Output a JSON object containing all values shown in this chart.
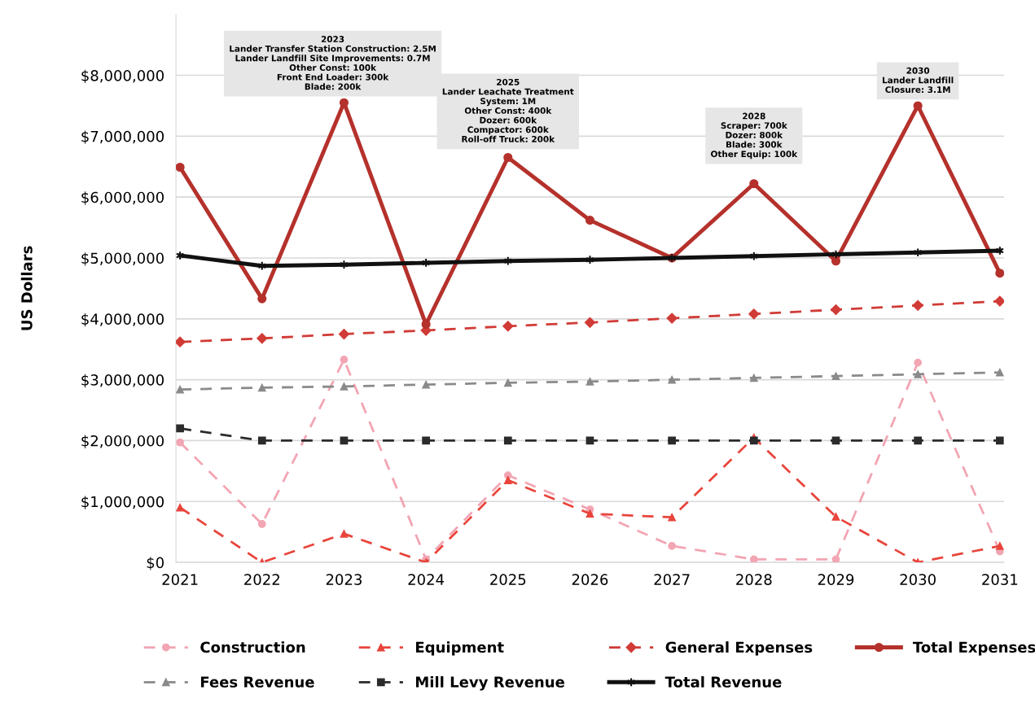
{
  "chart_data": {
    "type": "line",
    "ylabel": "US Dollars",
    "categories": [
      "2021",
      "2022",
      "2023",
      "2024",
      "2025",
      "2026",
      "2027",
      "2028",
      "2029",
      "2030",
      "2031"
    ],
    "ylim": [
      0,
      9000000
    ],
    "yticks": [
      {
        "value": 0,
        "label": "$0"
      },
      {
        "value": 1000000,
        "label": "$1,000,000"
      },
      {
        "value": 2000000,
        "label": "$2,000,000"
      },
      {
        "value": 3000000,
        "label": "$3,000,000"
      },
      {
        "value": 4000000,
        "label": "$4,000,000"
      },
      {
        "value": 5000000,
        "label": "$5,000,000"
      },
      {
        "value": 6000000,
        "label": "$6,000,000"
      },
      {
        "value": 7000000,
        "label": "$7,000,000"
      },
      {
        "value": 8000000,
        "label": "$8,000,000"
      }
    ],
    "grid": "y",
    "legend": "bottom",
    "series": [
      {
        "name": "Construction",
        "color": "#f2a5b3",
        "marker": "circle",
        "line_style": "dashed",
        "values": [
          1970000,
          630000,
          3330000,
          50000,
          1430000,
          870000,
          270000,
          50000,
          50000,
          3280000,
          180000
        ]
      },
      {
        "name": "Equipment",
        "color": "#e8453c",
        "marker": "triangle",
        "line_style": "dashed",
        "values": [
          900000,
          0,
          470000,
          0,
          1350000,
          800000,
          740000,
          2050000,
          750000,
          0,
          270000
        ]
      },
      {
        "name": "General Expenses",
        "color": "#d13b36",
        "marker": "diamond",
        "line_style": "dashed",
        "values": [
          3620000,
          3680000,
          3750000,
          3810000,
          3880000,
          3940000,
          4010000,
          4080000,
          4150000,
          4220000,
          4290000
        ]
      },
      {
        "name": "Total Expenses",
        "color": "#b5312c",
        "marker": "circle",
        "line_style": "solid",
        "values": [
          6490000,
          4330000,
          7550000,
          3910000,
          6650000,
          5620000,
          5000000,
          6220000,
          4950000,
          7500000,
          4750000
        ]
      },
      {
        "name": "Fees Revenue",
        "color": "#8a8a8a",
        "marker": "triangle",
        "line_style": "dashed",
        "values": [
          2840000,
          2870000,
          2890000,
          2920000,
          2950000,
          2970000,
          3000000,
          3030000,
          3060000,
          3090000,
          3120000
        ]
      },
      {
        "name": "Mill Levy Revenue",
        "color": "#2b2b2b",
        "marker": "square",
        "line_style": "dashed",
        "values": [
          2200000,
          2000000,
          2000000,
          2000000,
          2000000,
          2000000,
          2000000,
          2000000,
          2000000,
          2000000,
          2000000
        ]
      },
      {
        "name": "Total Revenue",
        "color": "#111111",
        "marker": "cross",
        "line_style": "solid",
        "values": [
          5040000,
          4870000,
          4890000,
          4920000,
          4950000,
          4970000,
          5000000,
          5030000,
          5060000,
          5090000,
          5120000
        ]
      }
    ],
    "annotations": [
      {
        "text": "2023\nLander Transfer Station Construction: 2.5M\nLander Landfill Site Improvements: 0.7M\nOther Const: 100k\nFront End Loader: 300k\nBlade: 200k",
        "x": "2023",
        "y": 7550000
      },
      {
        "text": "2025\nLander Leachate Treatment\nSystem: 1M\nOther Const: 400k\nDozer: 600k\nCompactor: 600k\nRoll-off Truck: 200k",
        "x": "2025",
        "y": 6650000
      },
      {
        "text": "2028\nScraper: 700k\nDozer: 800k\nBlade: 300k\nOther Equip: 100k",
        "x": "2028",
        "y": 6220000
      },
      {
        "text": "2030\nLander Landfill\nClosure: 3.1M",
        "x": "2030",
        "y": 7500000
      }
    ]
  }
}
